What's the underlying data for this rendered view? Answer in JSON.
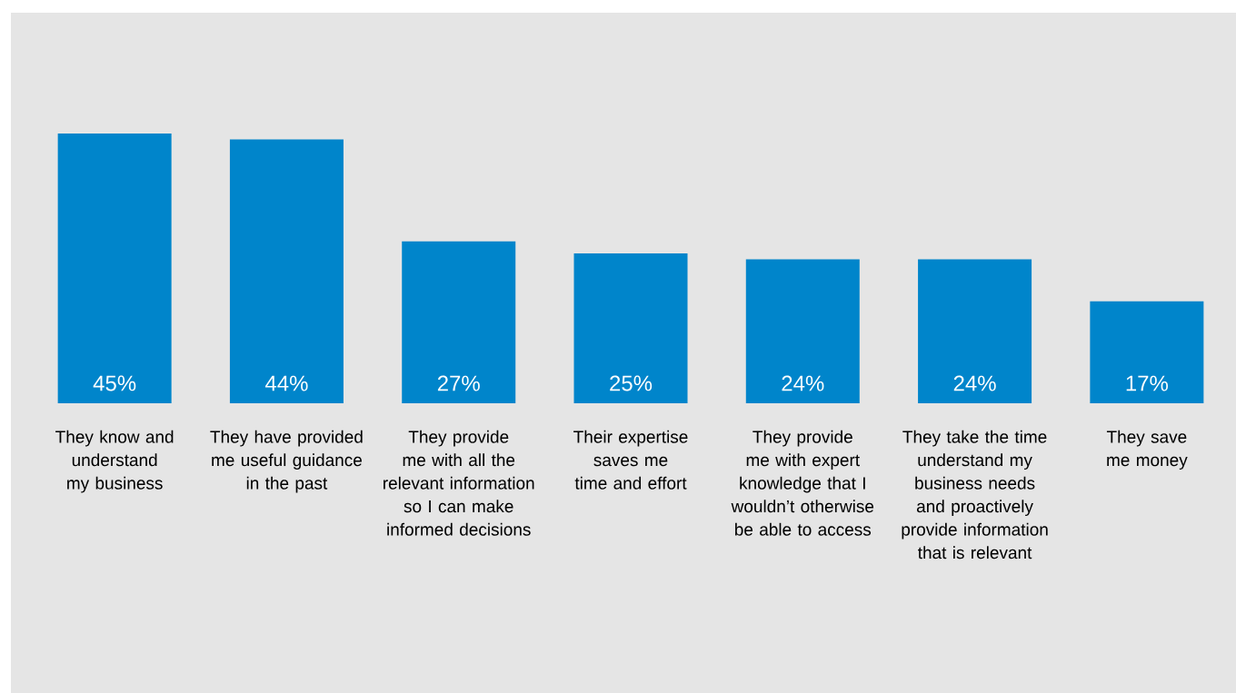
{
  "chart_data": {
    "type": "bar",
    "categories": [
      "They know and understand my business",
      "They have provided me useful guidance in the past",
      "They provide me with all the relevant information so I can make informed decisions",
      "Their expertise saves me time and effort",
      "They provide me with expert knowledge that I wouldn’t otherwise be able to access",
      "They take the time understand my business needs and proactively provide information that is relevant",
      "They save me money"
    ],
    "values": [
      45,
      44,
      27,
      25,
      24,
      24,
      17
    ],
    "value_labels": [
      "45%",
      "44%",
      "27%",
      "25%",
      "24%",
      "24%",
      "17%"
    ],
    "color": "#0085cb"
  }
}
